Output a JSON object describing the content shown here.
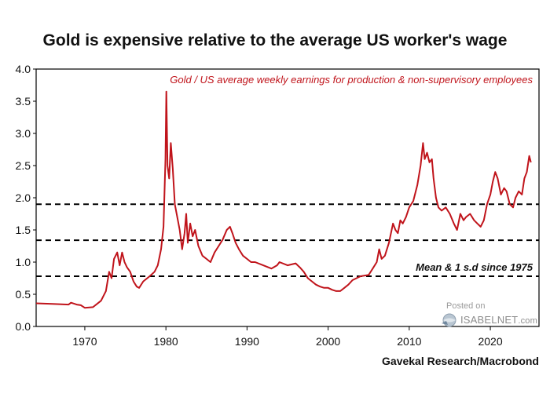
{
  "title": "Gold is expensive relative to the average US worker's wage",
  "source": "Gavekal Research/Macrobond",
  "watermark": {
    "posted": "Posted on",
    "site": "ISABELNET",
    "domain": ".com"
  },
  "colors": {
    "series": "#c0141b",
    "axis": "#000000",
    "threshold": "#000000"
  },
  "chart_data": {
    "type": "line",
    "title": "Gold is expensive relative to the average US worker's wage",
    "series_label": "Gold / US average weekly earnings for production & non-supervisory employees",
    "xlim": [
      1964,
      2026
    ],
    "ylim": [
      0,
      4.0
    ],
    "x_ticks": [
      1970,
      1980,
      1990,
      2000,
      2010,
      2020
    ],
    "x_tick_labels": [
      "1970",
      "1980",
      "1990",
      "2000",
      "2010",
      "2020"
    ],
    "y_ticks": [
      0,
      0.5,
      1.0,
      1.5,
      2.0,
      2.5,
      3.0,
      3.5,
      4.0
    ],
    "y_tick_labels": [
      "0.0",
      "0.5",
      "1.0",
      "1.5",
      "2.0",
      "2.5",
      "3.0",
      "3.5",
      "4.0"
    ],
    "reference_lines": [
      1.9,
      1.34,
      0.78
    ],
    "reference_label": "Mean & 1 s.d since 1975",
    "series": [
      {
        "name": "Gold / US average weekly earnings",
        "x": [
          1964.0,
          1966.0,
          1968.0,
          1968.3,
          1969.0,
          1969.5,
          1970.0,
          1971.0,
          1972.0,
          1972.6,
          1973.0,
          1973.3,
          1973.6,
          1974.0,
          1974.3,
          1974.6,
          1974.9,
          1975.2,
          1975.6,
          1976.0,
          1976.4,
          1976.7,
          1977.2,
          1978.0,
          1978.6,
          1979.0,
          1979.4,
          1979.7,
          1979.95,
          1980.05,
          1980.2,
          1980.4,
          1980.6,
          1980.85,
          1981.1,
          1981.4,
          1981.7,
          1982.0,
          1982.3,
          1982.5,
          1982.7,
          1983.0,
          1983.3,
          1983.6,
          1984.0,
          1984.5,
          1985.0,
          1985.5,
          1986.0,
          1986.5,
          1987.0,
          1987.5,
          1987.9,
          1988.2,
          1988.6,
          1989.0,
          1989.5,
          1990.0,
          1990.5,
          1991.0,
          1992.0,
          1993.0,
          1993.7,
          1994.0,
          1995.0,
          1996.0,
          1996.5,
          1997.0,
          1997.5,
          1998.0,
          1998.5,
          1999.0,
          1999.5,
          2000.0,
          2000.5,
          2001.0,
          2001.5,
          2002.0,
          2002.5,
          2003.0,
          2004.0,
          2005.0,
          2005.5,
          2006.0,
          2006.3,
          2006.6,
          2007.0,
          2007.5,
          2008.0,
          2008.3,
          2008.6,
          2008.9,
          2009.2,
          2009.6,
          2010.0,
          2010.5,
          2011.0,
          2011.4,
          2011.7,
          2011.9,
          2012.2,
          2012.5,
          2012.8,
          2013.0,
          2013.3,
          2013.6,
          2014.0,
          2014.5,
          2015.0,
          2015.5,
          2015.9,
          2016.3,
          2016.7,
          2017.0,
          2017.5,
          2018.0,
          2018.4,
          2018.8,
          2019.2,
          2019.6,
          2020.0,
          2020.3,
          2020.6,
          2020.9,
          2021.3,
          2021.7,
          2022.0,
          2022.4,
          2022.8,
          2023.1,
          2023.5,
          2023.9,
          2024.2,
          2024.5,
          2024.8,
          2025.0
        ],
        "y": [
          0.36,
          0.35,
          0.34,
          0.37,
          0.34,
          0.33,
          0.29,
          0.3,
          0.4,
          0.55,
          0.85,
          0.75,
          1.05,
          1.15,
          0.95,
          1.15,
          1.0,
          0.92,
          0.85,
          0.7,
          0.62,
          0.6,
          0.7,
          0.78,
          0.85,
          0.95,
          1.2,
          1.55,
          2.6,
          3.65,
          2.5,
          2.3,
          2.85,
          2.45,
          1.9,
          1.7,
          1.5,
          1.2,
          1.45,
          1.75,
          1.3,
          1.6,
          1.4,
          1.5,
          1.25,
          1.1,
          1.05,
          1.0,
          1.15,
          1.25,
          1.35,
          1.5,
          1.55,
          1.45,
          1.3,
          1.2,
          1.1,
          1.05,
          1.0,
          1.0,
          0.95,
          0.9,
          0.95,
          1.0,
          0.95,
          0.98,
          0.92,
          0.85,
          0.75,
          0.7,
          0.65,
          0.62,
          0.6,
          0.6,
          0.57,
          0.55,
          0.55,
          0.6,
          0.65,
          0.72,
          0.78,
          0.8,
          0.9,
          1.0,
          1.2,
          1.05,
          1.1,
          1.3,
          1.6,
          1.5,
          1.45,
          1.65,
          1.6,
          1.7,
          1.85,
          1.95,
          2.2,
          2.5,
          2.85,
          2.6,
          2.7,
          2.55,
          2.6,
          2.3,
          2.0,
          1.85,
          1.8,
          1.85,
          1.75,
          1.6,
          1.5,
          1.75,
          1.65,
          1.7,
          1.75,
          1.65,
          1.6,
          1.55,
          1.65,
          1.9,
          2.05,
          2.25,
          2.4,
          2.3,
          2.05,
          2.15,
          2.1,
          1.9,
          1.85,
          2.0,
          2.1,
          2.05,
          2.3,
          2.4,
          2.65,
          2.55
        ]
      }
    ]
  }
}
